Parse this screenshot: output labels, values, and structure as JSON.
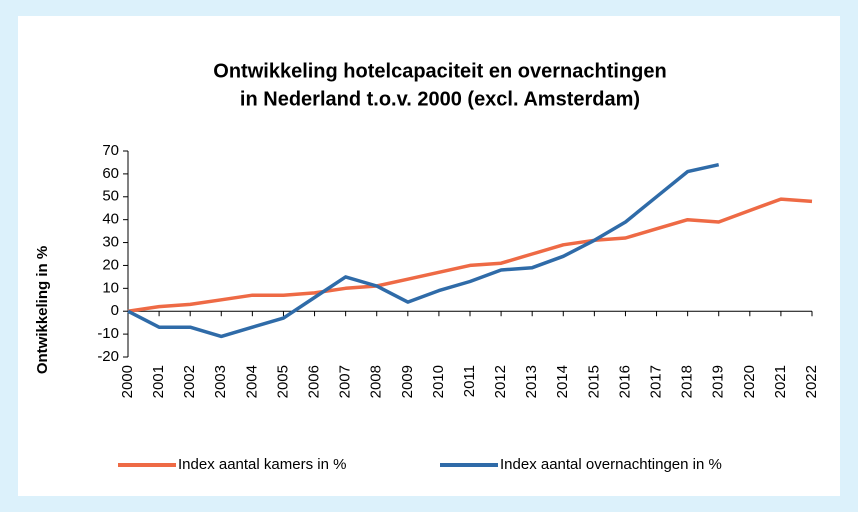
{
  "chart_data": {
    "type": "line",
    "title": [
      "Ontwikkeling hotelcapaciteit en overnachtingen",
      "in Nederland t.o.v. 2000 (excl. Amsterdam)"
    ],
    "y_label": "Ontwikkeling in %",
    "categories": [
      "2000",
      "2001",
      "2002",
      "2003",
      "2004",
      "2005",
      "2006",
      "2007",
      "2008",
      "2009",
      "2010",
      "2011",
      "2012",
      "2013",
      "2014",
      "2015",
      "2016",
      "2017",
      "2018",
      "2019",
      "2020",
      "2021",
      "2022"
    ],
    "series": [
      {
        "name": "Index aantal kamers in %",
        "color": "#ee6a45",
        "values": [
          0,
          2,
          3,
          5,
          7,
          7,
          8,
          10,
          11,
          14,
          17,
          20,
          21,
          25,
          29,
          31,
          32,
          36,
          40,
          39,
          44,
          49,
          48
        ]
      },
      {
        "name": "Index aantal overnachtingen in %",
        "color": "#2f6ba8",
        "values": [
          0,
          -7,
          -7,
          -11,
          -7,
          -3,
          6,
          15,
          11,
          4,
          9,
          13,
          18,
          19,
          24,
          31,
          39,
          50,
          61,
          64,
          null,
          null,
          null
        ]
      }
    ],
    "ylim": [
      -20,
      70
    ],
    "yticks": [
      -20,
      -10,
      0,
      10,
      20,
      30,
      40,
      50,
      60,
      70
    ],
    "grid": false,
    "legend": "bottom"
  }
}
